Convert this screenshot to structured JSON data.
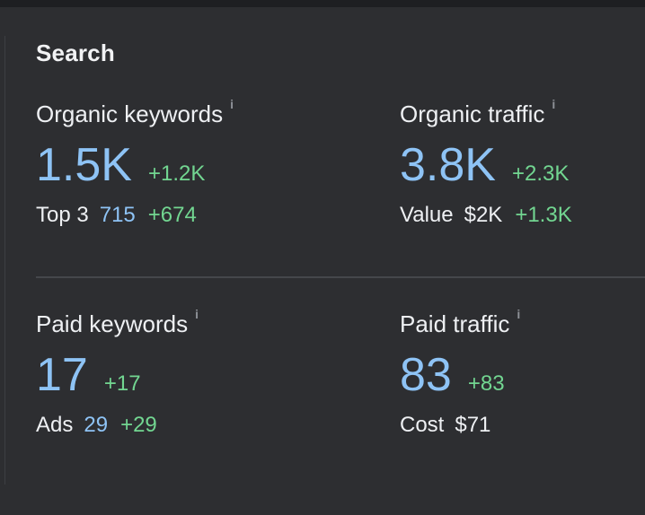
{
  "section": {
    "title": "Search"
  },
  "info_icon": "i",
  "metrics": {
    "organic_keywords": {
      "label": "Organic keywords",
      "value": "1.5K",
      "delta": "+1.2K",
      "sub_label": "Top 3",
      "sub_value": "715",
      "sub_delta": "+674"
    },
    "organic_traffic": {
      "label": "Organic traffic",
      "value": "3.8K",
      "delta": "+2.3K",
      "sub_label": "Value",
      "sub_value": "$2K",
      "sub_delta": "+1.3K"
    },
    "paid_keywords": {
      "label": "Paid keywords",
      "value": "17",
      "delta": "+17",
      "sub_label": "Ads",
      "sub_value": "29",
      "sub_delta": "+29"
    },
    "paid_traffic": {
      "label": "Paid traffic",
      "value": "83",
      "delta": "+83",
      "sub_label": "Cost",
      "sub_value": "$71"
    }
  },
  "colors": {
    "background": "#2d2e31",
    "value_blue": "#8ec3f5",
    "delta_green": "#72d691",
    "text": "#eef0f3"
  }
}
